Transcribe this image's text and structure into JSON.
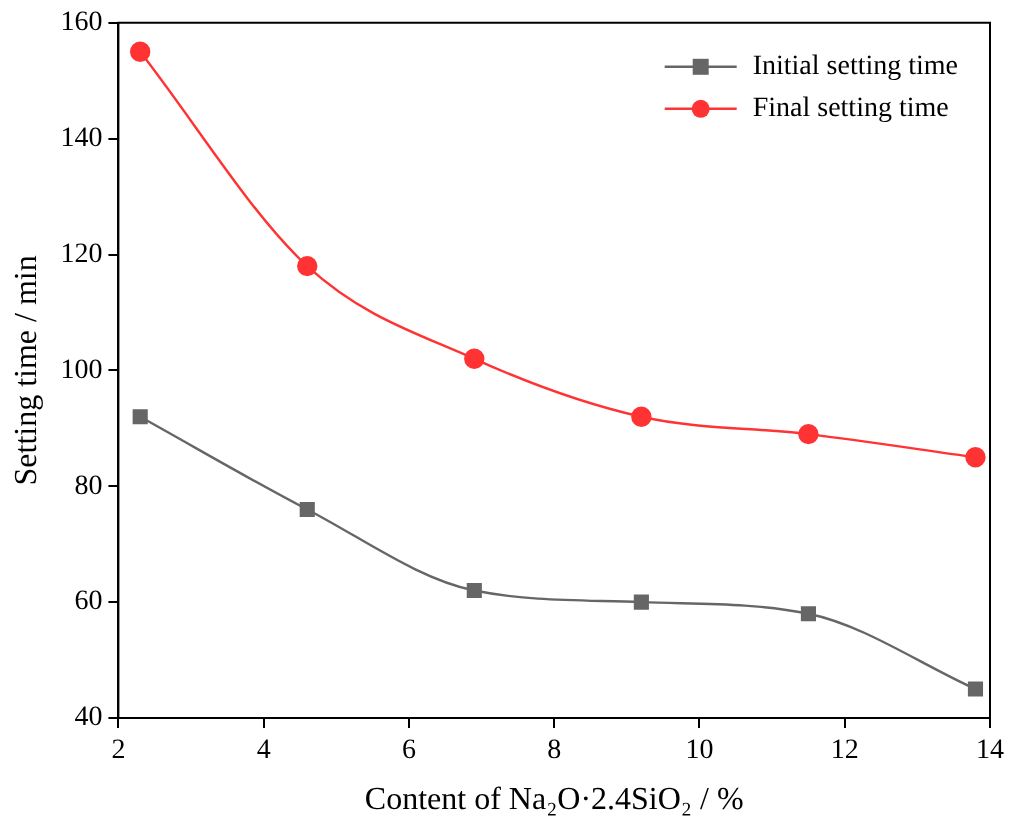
{
  "chart_data": {
    "type": "line",
    "xlabel": "Content of Na₂O·2.4SiO₂ / %",
    "ylabel": "Setting time / min",
    "x": [
      2.3,
      4.6,
      6.9,
      9.2,
      11.5,
      13.8
    ],
    "series": [
      {
        "name": "Initial setting time",
        "color": "#666666",
        "marker": "square",
        "values": [
          92,
          76,
          62,
          60,
          58,
          45
        ]
      },
      {
        "name": "Final setting time",
        "color": "#ff3333",
        "marker": "circle",
        "values": [
          155,
          118,
          102,
          92,
          89,
          85
        ]
      }
    ],
    "xlim": [
      2,
      14
    ],
    "xticks": [
      2,
      4,
      6,
      8,
      10,
      12,
      14
    ],
    "ylim": [
      40,
      160
    ],
    "yticks": [
      40,
      60,
      80,
      100,
      120,
      140,
      160
    ],
    "grid": false,
    "legend": "top right",
    "line_style": "solid"
  }
}
